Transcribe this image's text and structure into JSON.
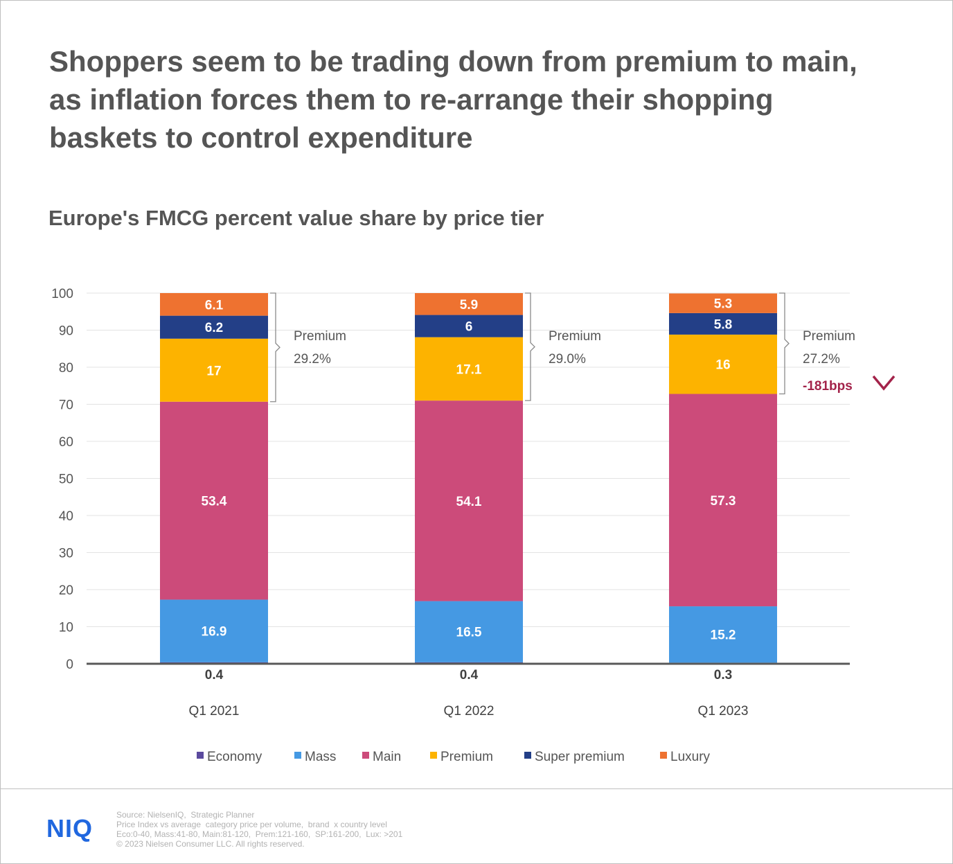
{
  "headline": "Shoppers seem to be trading down from premium to main, as inflation forces them to re-arrange their shopping baskets to control expenditure",
  "chart_data": {
    "type": "bar",
    "stacked": true,
    "title": "Europe's FMCG percent value share by price tier",
    "xlabel": "",
    "ylabel": "",
    "ylim": [
      0,
      100
    ],
    "yticks": [
      "0",
      "10",
      "20",
      "30",
      "40",
      "50",
      "60",
      "70",
      "80",
      "90",
      "100"
    ],
    "grid": true,
    "legend_position": "bottom",
    "categories": [
      "Q1 2021",
      "Q1 2022",
      "Q1 2023"
    ],
    "series": [
      {
        "name": "Economy",
        "color": "#5b4a9e",
        "values": [
          0.4,
          0.4,
          0.3
        ],
        "labels": [
          "0.4",
          "0.4",
          "0.3"
        ]
      },
      {
        "name": "Mass",
        "color": "#4599e3",
        "values": [
          16.9,
          16.5,
          15.2
        ],
        "labels": [
          "16.9",
          "16.5",
          "15.2"
        ]
      },
      {
        "name": "Main",
        "color": "#cc4b7a",
        "values": [
          53.4,
          54.1,
          57.3
        ],
        "labels": [
          "53.4",
          "54.1",
          "57.3"
        ]
      },
      {
        "name": "Premium",
        "color": "#fdb300",
        "values": [
          17,
          17.1,
          16
        ],
        "labels": [
          "17",
          "17.1",
          "16"
        ]
      },
      {
        "name": "Super premium",
        "color": "#233f87",
        "values": [
          6.2,
          6,
          5.8
        ],
        "labels": [
          "6.2",
          "6",
          "5.8"
        ]
      },
      {
        "name": "Luxury",
        "color": "#ee7230",
        "values": [
          6.1,
          5.9,
          5.3
        ],
        "labels": [
          "6.1",
          "5.9",
          "5.3"
        ]
      }
    ],
    "annotations": [
      {
        "label": "Premium",
        "value": "29.2%"
      },
      {
        "label": "Premium",
        "value": "29.0%"
      },
      {
        "label": "Premium",
        "value": "27.2%",
        "change": "-181bps"
      }
    ]
  },
  "footer": {
    "logo": "NIQ",
    "source_lines": [
      "Source: NielsenIQ,  Strategic Planner",
      "Price Index vs average  category price per volume,  brand  x country level",
      "Eco:0-40, Mass:41-80, Main:81-120,  Prem:121-160,  SP:161-200,  Lux: >201",
      "© 2023 Nielsen Consumer LLC. All rights reserved."
    ]
  }
}
